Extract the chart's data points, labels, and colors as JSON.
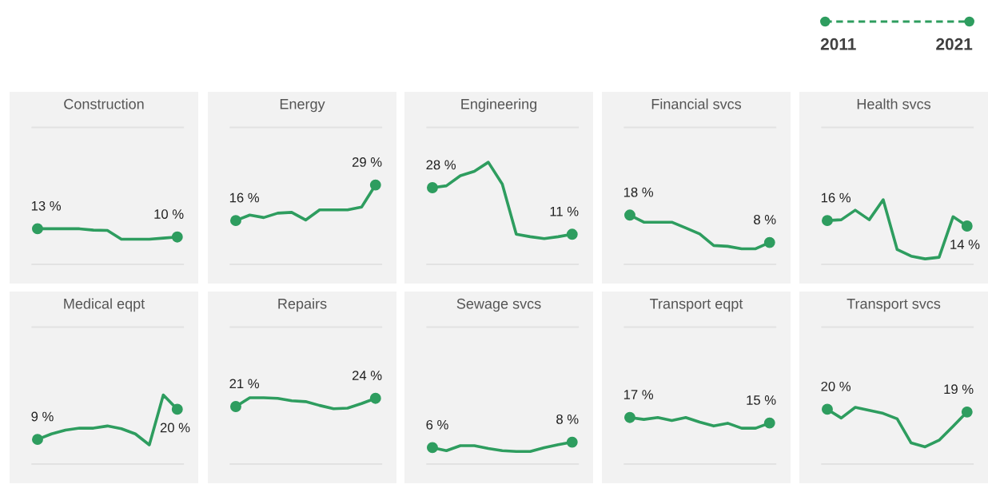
{
  "chart_data": [
    {
      "type": "other",
      "annotations": [
        "2011",
        "2021"
      ],
      "color": "#2e9d5f"
    },
    {
      "type": "line",
      "title": "Construction",
      "categories": [
        null,
        null,
        null,
        null,
        null,
        null,
        null,
        null,
        null,
        null,
        null
      ],
      "ylim": [
        -7,
        63
      ],
      "grid": false,
      "ref_lines": [
        {
          "axis": "y",
          "value": 0,
          "color": "#e2e2e2"
        },
        {
          "axis": "y",
          "value": 50,
          "color": "#e2e2e2"
        }
      ],
      "series": [
        {
          "color": "#2e9d5f",
          "values": [
            13,
            13,
            13,
            13,
            12.5,
            12.4,
            9.2,
            9.2,
            9.2,
            9.6,
            10
          ],
          "value_labels": [
            "13 %",
            null,
            null,
            null,
            null,
            null,
            null,
            null,
            null,
            null,
            "10 %"
          ]
        }
      ]
    },
    {
      "type": "line",
      "title": "Energy",
      "categories": [
        null,
        null,
        null,
        null,
        null,
        null,
        null,
        null,
        null,
        null,
        null
      ],
      "ylim": [
        -7,
        63
      ],
      "grid": false,
      "ref_lines": [
        {
          "axis": "y",
          "value": 0,
          "color": "#e2e2e2"
        },
        {
          "axis": "y",
          "value": 50,
          "color": "#e2e2e2"
        }
      ],
      "series": [
        {
          "color": "#2e9d5f",
          "values": [
            16,
            18,
            17.1,
            18.7,
            19,
            16.2,
            19.9,
            19.9,
            19.9,
            20.9,
            29
          ],
          "value_labels": [
            "16 %",
            null,
            null,
            null,
            null,
            null,
            null,
            null,
            null,
            null,
            "29 %"
          ]
        }
      ]
    },
    {
      "type": "line",
      "title": "Engineering",
      "categories": [
        null,
        null,
        null,
        null,
        null,
        null,
        null,
        null,
        null,
        null,
        null
      ],
      "ylim": [
        -7,
        63
      ],
      "grid": false,
      "ref_lines": [
        {
          "axis": "y",
          "value": 0,
          "color": "#e2e2e2"
        },
        {
          "axis": "y",
          "value": 50,
          "color": "#e2e2e2"
        }
      ],
      "series": [
        {
          "color": "#2e9d5f",
          "values": [
            28,
            28.7,
            32.4,
            34,
            37.3,
            29.3,
            11,
            10.1,
            9.4,
            10.1,
            11
          ],
          "value_labels": [
            "28 %",
            null,
            null,
            null,
            null,
            null,
            null,
            null,
            null,
            null,
            "11 %"
          ]
        }
      ]
    },
    {
      "type": "line",
      "title": "Financial svcs",
      "categories": [
        null,
        null,
        null,
        null,
        null,
        null,
        null,
        null,
        null,
        null,
        null
      ],
      "ylim": [
        -7,
        63
      ],
      "grid": false,
      "ref_lines": [
        {
          "axis": "y",
          "value": 0,
          "color": "#e2e2e2"
        },
        {
          "axis": "y",
          "value": 50,
          "color": "#e2e2e2"
        }
      ],
      "series": [
        {
          "color": "#2e9d5f",
          "values": [
            18,
            15.4,
            15.4,
            15.4,
            13.3,
            11.1,
            6.9,
            6.6,
            5.7,
            5.7,
            8
          ],
          "value_labels": [
            "18 %",
            null,
            null,
            null,
            null,
            null,
            null,
            null,
            null,
            null,
            "8 %"
          ]
        }
      ]
    },
    {
      "type": "line",
      "title": "Health svcs",
      "categories": [
        null,
        null,
        null,
        null,
        null,
        null,
        null,
        null,
        null,
        null,
        null
      ],
      "ylim": [
        -7,
        63
      ],
      "grid": false,
      "ref_lines": [
        {
          "axis": "y",
          "value": 0,
          "color": "#e2e2e2"
        },
        {
          "axis": "y",
          "value": 50,
          "color": "#e2e2e2"
        }
      ],
      "series": [
        {
          "color": "#2e9d5f",
          "values": [
            16,
            16.3,
            19.8,
            16.3,
            23.6,
            5.4,
            3,
            2,
            2.6,
            17.4,
            14
          ],
          "value_labels": [
            "16 %",
            null,
            null,
            null,
            null,
            null,
            null,
            null,
            null,
            null,
            "14 %"
          ]
        }
      ]
    },
    {
      "type": "line",
      "title": "Medical eqpt",
      "categories": [
        null,
        null,
        null,
        null,
        null,
        null,
        null,
        null,
        null,
        null,
        null
      ],
      "ylim": [
        -7,
        63
      ],
      "grid": false,
      "ref_lines": [
        {
          "axis": "y",
          "value": 0,
          "color": "#e2e2e2"
        },
        {
          "axis": "y",
          "value": 50,
          "color": "#e2e2e2"
        }
      ],
      "series": [
        {
          "color": "#2e9d5f",
          "values": [
            9,
            11,
            12.4,
            13.1,
            13.1,
            13.9,
            12.9,
            11,
            7,
            25.2,
            20
          ],
          "value_labels": [
            "9 %",
            null,
            null,
            null,
            null,
            null,
            null,
            null,
            null,
            null,
            "20 %"
          ]
        }
      ]
    },
    {
      "type": "line",
      "title": "Repairs",
      "categories": [
        null,
        null,
        null,
        null,
        null,
        null,
        null,
        null,
        null,
        null,
        null
      ],
      "ylim": [
        -7,
        63
      ],
      "grid": false,
      "ref_lines": [
        {
          "axis": "y",
          "value": 0,
          "color": "#e2e2e2"
        },
        {
          "axis": "y",
          "value": 50,
          "color": "#e2e2e2"
        }
      ],
      "series": [
        {
          "color": "#2e9d5f",
          "values": [
            21,
            24.2,
            24.2,
            24,
            23.1,
            22.8,
            21.4,
            20.2,
            20.4,
            22.1,
            24
          ],
          "value_labels": [
            "21 %",
            null,
            null,
            null,
            null,
            null,
            null,
            null,
            null,
            null,
            "24 %"
          ]
        }
      ]
    },
    {
      "type": "line",
      "title": "Sewage svcs",
      "categories": [
        null,
        null,
        null,
        null,
        null,
        null,
        null,
        null,
        null,
        null,
        null
      ],
      "ylim": [
        -7,
        63
      ],
      "grid": false,
      "ref_lines": [
        {
          "axis": "y",
          "value": 0,
          "color": "#e2e2e2"
        },
        {
          "axis": "y",
          "value": 50,
          "color": "#e2e2e2"
        }
      ],
      "series": [
        {
          "color": "#2e9d5f",
          "values": [
            6,
            4.9,
            6.7,
            6.7,
            5.7,
            4.9,
            4.6,
            4.6,
            6,
            7.1,
            8
          ],
          "value_labels": [
            "6 %",
            null,
            null,
            null,
            null,
            null,
            null,
            null,
            null,
            null,
            "8 %"
          ]
        }
      ]
    },
    {
      "type": "line",
      "title": "Transport eqpt",
      "categories": [
        null,
        null,
        null,
        null,
        null,
        null,
        null,
        null,
        null,
        null,
        null
      ],
      "ylim": [
        -7,
        63
      ],
      "grid": false,
      "ref_lines": [
        {
          "axis": "y",
          "value": 0,
          "color": "#e2e2e2"
        },
        {
          "axis": "y",
          "value": 50,
          "color": "#e2e2e2"
        }
      ],
      "series": [
        {
          "color": "#2e9d5f",
          "values": [
            17,
            16.3,
            17,
            15.9,
            17,
            15.3,
            13.9,
            14.9,
            13.1,
            13.1,
            15
          ],
          "value_labels": [
            "17 %",
            null,
            null,
            null,
            null,
            null,
            null,
            null,
            null,
            null,
            "15 %"
          ]
        }
      ]
    },
    {
      "type": "line",
      "title": "Transport svcs",
      "categories": [
        null,
        null,
        null,
        null,
        null,
        null,
        null,
        null,
        null,
        null,
        null
      ],
      "ylim": [
        -7,
        63
      ],
      "grid": false,
      "ref_lines": [
        {
          "axis": "y",
          "value": 0,
          "color": "#e2e2e2"
        },
        {
          "axis": "y",
          "value": 50,
          "color": "#e2e2e2"
        }
      ],
      "series": [
        {
          "color": "#2e9d5f",
          "values": [
            20,
            16.8,
            20.7,
            19.6,
            18.5,
            16.5,
            7.7,
            6.3,
            8.7,
            13.8,
            19
          ],
          "value_labels": [
            "20 %",
            null,
            null,
            null,
            null,
            null,
            null,
            null,
            null,
            null,
            "19 %"
          ]
        }
      ]
    }
  ]
}
